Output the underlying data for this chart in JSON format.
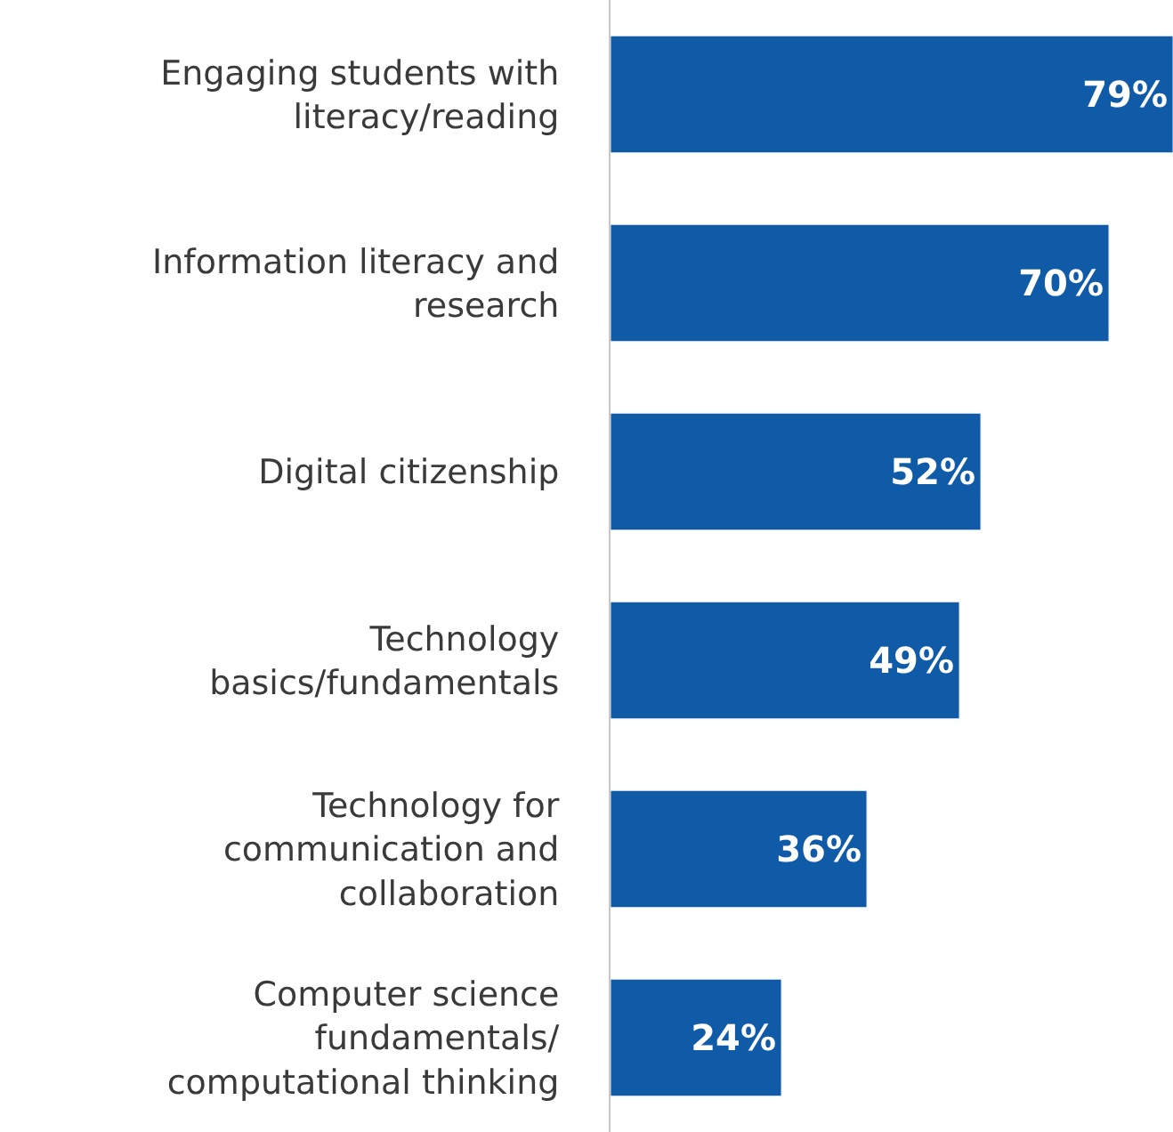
{
  "chart_data": {
    "type": "bar",
    "orientation": "horizontal",
    "categories": [
      "Engaging students with\nliteracy/reading",
      "Information literacy and\nresearch",
      "Digital citizenship",
      "Technology\nbasics/fundamentals",
      "Technology for\ncommunication and\ncollaboration",
      "Computer science\nfundamentals/\ncomputational thinking"
    ],
    "values": [
      79,
      70,
      52,
      49,
      36,
      24
    ],
    "value_labels": [
      "79%",
      "70%",
      "52%",
      "49%",
      "36%",
      "24%"
    ],
    "color": "#105ba8"
  }
}
